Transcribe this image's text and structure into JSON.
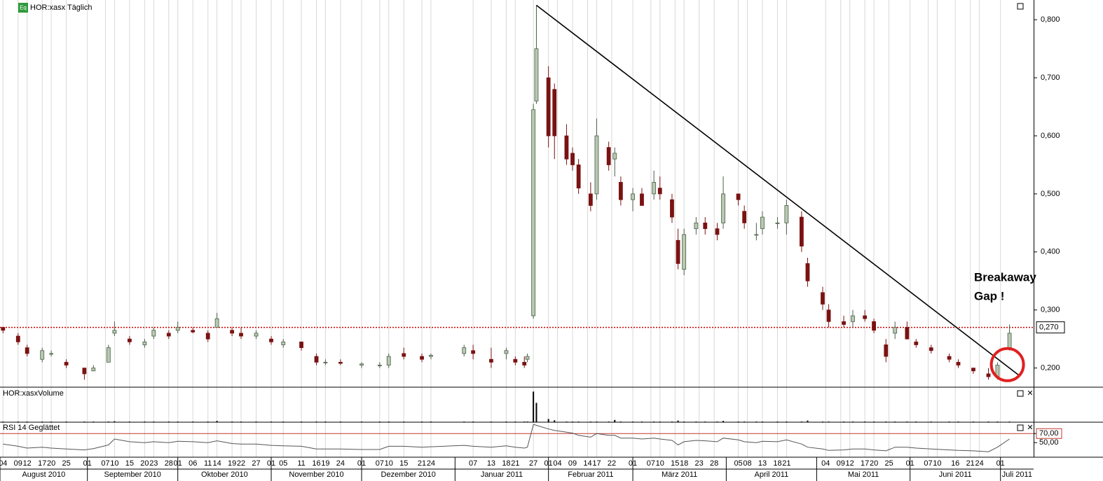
{
  "header": {
    "icon": "Eq",
    "title": "HOR:xasx Täglich"
  },
  "chart_data": {
    "type": "candlestick",
    "x": [
      "2010-08-04",
      "2010-08-09",
      "2010-08-12",
      "2010-08-17",
      "2010-08-20",
      "2010-08-25",
      "2010-08-31",
      "2010-09-03",
      "2010-09-08",
      "2010-09-10",
      "2010-09-15",
      "2010-09-20",
      "2010-09-23",
      "2010-09-28",
      "2010-10-01",
      "2010-10-06",
      "2010-10-11",
      "2010-10-14",
      "2010-10-19",
      "2010-10-22",
      "2010-10-27",
      "2010-11-01",
      "2010-11-05",
      "2010-11-11",
      "2010-11-16",
      "2010-11-19",
      "2010-11-24",
      "2010-12-01",
      "2010-12-07",
      "2010-12-10",
      "2010-12-15",
      "2010-12-21",
      "2010-12-24",
      "2011-01-04",
      "2011-01-07",
      "2011-01-13",
      "2011-01-18",
      "2011-01-21",
      "2011-01-24",
      "2011-01-25",
      "2011-01-27",
      "2011-01-28",
      "2011-02-01",
      "2011-02-03",
      "2011-02-07",
      "2011-02-09",
      "2011-02-11",
      "2011-02-15",
      "2011-02-17",
      "2011-02-21",
      "2011-02-23",
      "2011-02-25",
      "2011-03-01",
      "2011-03-04",
      "2011-03-08",
      "2011-03-10",
      "2011-03-14",
      "2011-03-16",
      "2011-03-18",
      "2011-03-22",
      "2011-03-25",
      "2011-03-29",
      "2011-03-31",
      "2011-04-05",
      "2011-04-07",
      "2011-04-11",
      "2011-04-13",
      "2011-04-18",
      "2011-04-21",
      "2011-04-26",
      "2011-04-28",
      "2011-05-03",
      "2011-05-05",
      "2011-05-10",
      "2011-05-13",
      "2011-05-17",
      "2011-05-20",
      "2011-05-24",
      "2011-05-27",
      "2011-05-31",
      "2011-06-03",
      "2011-06-08",
      "2011-06-14",
      "2011-06-17",
      "2011-06-22",
      "2011-06-27",
      "2011-06-30",
      "2011-07-04"
    ],
    "open": [
      0.27,
      0.255,
      0.235,
      0.215,
      0.225,
      0.21,
      0.2,
      0.195,
      0.21,
      0.26,
      0.25,
      0.24,
      0.255,
      0.26,
      0.265,
      0.265,
      0.26,
      0.27,
      0.265,
      0.26,
      0.255,
      0.25,
      0.24,
      0.245,
      0.22,
      0.21,
      0.21,
      0.205,
      0.205,
      0.205,
      0.225,
      0.22,
      0.22,
      0.225,
      0.23,
      0.215,
      0.225,
      0.215,
      0.21,
      0.215,
      0.29,
      0.66,
      0.7,
      0.68,
      0.6,
      0.57,
      0.55,
      0.5,
      0.5,
      0.58,
      0.56,
      0.52,
      0.49,
      0.5,
      0.5,
      0.51,
      0.49,
      0.42,
      0.37,
      0.44,
      0.45,
      0.44,
      0.45,
      0.5,
      0.47,
      0.43,
      0.44,
      0.45,
      0.45,
      0.46,
      0.38,
      0.33,
      0.3,
      0.28,
      0.28,
      0.29,
      0.28,
      0.24,
      0.26,
      0.27,
      0.245,
      0.235,
      0.22,
      0.21,
      0.2,
      0.19,
      0.185,
      0.235
    ],
    "high": [
      0.27,
      0.26,
      0.24,
      0.235,
      0.23,
      0.215,
      0.2,
      0.205,
      0.24,
      0.28,
      0.255,
      0.25,
      0.27,
      0.265,
      0.28,
      0.27,
      0.265,
      0.295,
      0.27,
      0.27,
      0.265,
      0.255,
      0.25,
      0.245,
      0.225,
      0.215,
      0.215,
      0.21,
      0.21,
      0.225,
      0.235,
      0.225,
      0.225,
      0.24,
      0.24,
      0.235,
      0.235,
      0.22,
      0.22,
      0.225,
      0.655,
      0.825,
      0.72,
      0.69,
      0.62,
      0.58,
      0.56,
      0.52,
      0.63,
      0.59,
      0.58,
      0.53,
      0.51,
      0.51,
      0.54,
      0.53,
      0.5,
      0.44,
      0.44,
      0.46,
      0.46,
      0.45,
      0.53,
      0.5,
      0.48,
      0.45,
      0.47,
      0.46,
      0.49,
      0.47,
      0.39,
      0.34,
      0.31,
      0.29,
      0.3,
      0.3,
      0.285,
      0.25,
      0.28,
      0.28,
      0.25,
      0.24,
      0.225,
      0.215,
      0.2,
      0.2,
      0.21,
      0.275
    ],
    "low": [
      0.26,
      0.24,
      0.22,
      0.21,
      0.22,
      0.2,
      0.18,
      0.195,
      0.21,
      0.255,
      0.24,
      0.235,
      0.25,
      0.25,
      0.26,
      0.26,
      0.245,
      0.27,
      0.255,
      0.25,
      0.25,
      0.24,
      0.235,
      0.23,
      0.205,
      0.205,
      0.205,
      0.2,
      0.2,
      0.2,
      0.215,
      0.21,
      0.215,
      0.22,
      0.215,
      0.2,
      0.215,
      0.205,
      0.2,
      0.21,
      0.285,
      0.655,
      0.58,
      0.56,
      0.55,
      0.54,
      0.5,
      0.47,
      0.49,
      0.54,
      0.53,
      0.48,
      0.47,
      0.48,
      0.49,
      0.49,
      0.45,
      0.37,
      0.36,
      0.43,
      0.43,
      0.42,
      0.44,
      0.48,
      0.44,
      0.42,
      0.43,
      0.44,
      0.43,
      0.4,
      0.34,
      0.3,
      0.27,
      0.27,
      0.27,
      0.28,
      0.26,
      0.21,
      0.25,
      0.25,
      0.235,
      0.225,
      0.21,
      0.2,
      0.19,
      0.18,
      0.18,
      0.23
    ],
    "close": [
      0.265,
      0.245,
      0.225,
      0.23,
      0.225,
      0.205,
      0.19,
      0.2,
      0.235,
      0.265,
      0.245,
      0.245,
      0.265,
      0.255,
      0.27,
      0.262,
      0.25,
      0.285,
      0.26,
      0.255,
      0.26,
      0.245,
      0.245,
      0.235,
      0.21,
      0.21,
      0.208,
      0.207,
      0.205,
      0.22,
      0.22,
      0.215,
      0.222,
      0.235,
      0.225,
      0.21,
      0.23,
      0.21,
      0.205,
      0.22,
      0.645,
      0.75,
      0.6,
      0.6,
      0.56,
      0.55,
      0.51,
      0.48,
      0.6,
      0.55,
      0.57,
      0.49,
      0.5,
      0.48,
      0.52,
      0.5,
      0.46,
      0.38,
      0.43,
      0.45,
      0.44,
      0.43,
      0.5,
      0.49,
      0.45,
      0.43,
      0.46,
      0.45,
      0.48,
      0.41,
      0.35,
      0.31,
      0.28,
      0.275,
      0.29,
      0.285,
      0.265,
      0.22,
      0.27,
      0.25,
      0.24,
      0.23,
      0.215,
      0.205,
      0.195,
      0.185,
      0.205,
      0.26
    ],
    "up_color": "#b7c9b0",
    "down_color": "#7a1212",
    "xlim": [
      "2010-08-03",
      "2011-07-12"
    ],
    "ylim": [
      0.167,
      0.834
    ],
    "yticks": [
      {
        "value": 0.2,
        "label": "0,200"
      },
      {
        "value": 0.3,
        "label": "0,300"
      },
      {
        "value": 0.4,
        "label": "0,400"
      },
      {
        "value": 0.5,
        "label": "0,500"
      },
      {
        "value": 0.6,
        "label": "0,600"
      },
      {
        "value": 0.7,
        "label": "0,700"
      },
      {
        "value": 0.8,
        "label": "0,800"
      }
    ],
    "xticks": [
      {
        "value": "2010-08-04",
        "label": "04"
      },
      {
        "value": "2010-08-09",
        "label": "09"
      },
      {
        "value": "2010-08-12",
        "label": "12"
      },
      {
        "value": "2010-08-17",
        "label": "17"
      },
      {
        "value": "2010-08-20",
        "label": "20"
      },
      {
        "value": "2010-08-25",
        "label": "25"
      },
      {
        "value": "2010-09-01",
        "label": "01"
      },
      {
        "value": "2010-09-07",
        "label": "07"
      },
      {
        "value": "2010-09-10",
        "label": "10"
      },
      {
        "value": "2010-09-15",
        "label": "15"
      },
      {
        "value": "2010-09-20",
        "label": "20"
      },
      {
        "value": "2010-09-23",
        "label": "23"
      },
      {
        "value": "2010-09-28",
        "label": "28"
      },
      {
        "value": "2010-10-01",
        "label": "01"
      },
      {
        "value": "2010-10-06",
        "label": "06"
      },
      {
        "value": "2010-10-11",
        "label": "11"
      },
      {
        "value": "2010-10-14",
        "label": "14"
      },
      {
        "value": "2010-10-19",
        "label": "19"
      },
      {
        "value": "2010-10-22",
        "label": "22"
      },
      {
        "value": "2010-10-27",
        "label": "27"
      },
      {
        "value": "2010-11-01",
        "label": "01"
      },
      {
        "value": "2010-11-05",
        "label": "05"
      },
      {
        "value": "2010-11-11",
        "label": "11"
      },
      {
        "value": "2010-11-16",
        "label": "16"
      },
      {
        "value": "2010-11-19",
        "label": "19"
      },
      {
        "value": "2010-11-24",
        "label": "24"
      },
      {
        "value": "2010-12-01",
        "label": "01"
      },
      {
        "value": "2010-12-07",
        "label": "07"
      },
      {
        "value": "2010-12-10",
        "label": "10"
      },
      {
        "value": "2010-12-15",
        "label": "15"
      },
      {
        "value": "2010-12-21",
        "label": "21"
      },
      {
        "value": "2010-12-24",
        "label": "24"
      },
      {
        "value": "2011-01-07",
        "label": "07"
      },
      {
        "value": "2011-01-13",
        "label": "13"
      },
      {
        "value": "2011-01-18",
        "label": "18"
      },
      {
        "value": "2011-01-21",
        "label": "21"
      },
      {
        "value": "2011-01-27",
        "label": "27"
      },
      {
        "value": "2011-02-01",
        "label": "01"
      },
      {
        "value": "2011-02-04",
        "label": "04"
      },
      {
        "value": "2011-02-09",
        "label": "09"
      },
      {
        "value": "2011-02-14",
        "label": "14"
      },
      {
        "value": "2011-02-17",
        "label": "17"
      },
      {
        "value": "2011-02-22",
        "label": "22"
      },
      {
        "value": "2011-03-01",
        "label": "01"
      },
      {
        "value": "2011-03-07",
        "label": "07"
      },
      {
        "value": "2011-03-10",
        "label": "10"
      },
      {
        "value": "2011-03-15",
        "label": "15"
      },
      {
        "value": "2011-03-18",
        "label": "18"
      },
      {
        "value": "2011-03-23",
        "label": "23"
      },
      {
        "value": "2011-03-28",
        "label": "28"
      },
      {
        "value": "2011-04-05",
        "label": "05"
      },
      {
        "value": "2011-04-08",
        "label": "08"
      },
      {
        "value": "2011-04-13",
        "label": "13"
      },
      {
        "value": "2011-04-18",
        "label": "18"
      },
      {
        "value": "2011-04-21",
        "label": "21"
      },
      {
        "value": "2011-05-04",
        "label": "04"
      },
      {
        "value": "2011-05-09",
        "label": "09"
      },
      {
        "value": "2011-05-12",
        "label": "12"
      },
      {
        "value": "2011-05-17",
        "label": "17"
      },
      {
        "value": "2011-05-20",
        "label": "20"
      },
      {
        "value": "2011-05-25",
        "label": "25"
      },
      {
        "value": "2011-06-01",
        "label": "01"
      },
      {
        "value": "2011-06-07",
        "label": "07"
      },
      {
        "value": "2011-06-10",
        "label": "10"
      },
      {
        "value": "2011-06-16",
        "label": "16"
      },
      {
        "value": "2011-06-21",
        "label": "21"
      },
      {
        "value": "2011-06-24",
        "label": "24"
      },
      {
        "value": "2011-07-01",
        "label": "01"
      }
    ],
    "month_ticks": [
      {
        "value": "2010-08-01",
        "label": "August 2010"
      },
      {
        "value": "2010-09-01",
        "label": "September 2010"
      },
      {
        "value": "2010-10-01",
        "label": "Oktober 2010"
      },
      {
        "value": "2010-11-01",
        "label": "November 2010"
      },
      {
        "value": "2010-12-01",
        "label": "Dezember 2010"
      },
      {
        "value": "2011-01-01",
        "label": "Januar 2011"
      },
      {
        "value": "2011-02-01",
        "label": "Februar 2011"
      },
      {
        "value": "2011-03-01",
        "label": "März 2011"
      },
      {
        "value": "2011-04-01",
        "label": "April 2011"
      },
      {
        "value": "2011-05-01",
        "label": "Mai 2011"
      },
      {
        "value": "2011-06-01",
        "label": "Juni 2011"
      },
      {
        "value": "2011-07-01",
        "label": "Juli 2011"
      }
    ],
    "hline": {
      "value": 0.27,
      "label": "0,270"
    },
    "hline_color": "#cc0000",
    "trendline": {
      "x": [
        "2011-01-28",
        "2011-07-07"
      ],
      "y": [
        0.825,
        0.188
      ]
    },
    "annotation": [
      "Breakaway",
      "Gap !"
    ],
    "annotation_color": "#e02020",
    "volume": {
      "title": "HOR:xasxVolume",
      "ylim": [
        0,
        100
      ],
      "color": "#000000",
      "values": [
        2,
        2,
        2,
        2,
        2,
        2,
        2,
        2,
        2,
        3,
        2,
        2,
        2,
        2,
        2,
        2,
        2,
        4,
        2,
        2,
        2,
        2,
        2,
        2,
        2,
        2,
        2,
        2,
        2,
        2,
        2,
        2,
        2,
        2,
        2,
        2,
        2,
        2,
        2,
        2,
        95,
        60,
        10,
        6,
        2,
        2,
        2,
        2,
        2,
        2,
        7,
        2,
        2,
        2,
        2,
        2,
        2,
        5,
        2,
        2,
        2,
        2,
        4,
        2,
        2,
        2,
        2,
        2,
        2,
        2,
        5,
        2,
        2,
        2,
        2,
        2,
        2,
        2,
        2,
        2,
        2,
        2,
        2,
        2,
        2,
        2,
        2,
        2
      ]
    },
    "rsi": {
      "title": "RSI 14 Geglättet",
      "ylim": [
        18,
        95
      ],
      "color": "#555555",
      "level_color": "#c0392b",
      "yticks": [
        {
          "value": 70,
          "label": "70,00"
        },
        {
          "value": 50,
          "label": "50,00"
        }
      ],
      "values": [
        47,
        42,
        38,
        40,
        38,
        36,
        34,
        37,
        45,
        58,
        52,
        50,
        52,
        50,
        53,
        52,
        50,
        54,
        48,
        47,
        47,
        44,
        43,
        42,
        36,
        36,
        36,
        35,
        35,
        42,
        42,
        40,
        41,
        44,
        42,
        40,
        43,
        40,
        38,
        40,
        90,
        88,
        80,
        77,
        73,
        71,
        66,
        62,
        70,
        66,
        66,
        60,
        60,
        58,
        60,
        58,
        55,
        45,
        52,
        55,
        54,
        52,
        60,
        56,
        52,
        50,
        53,
        52,
        56,
        47,
        40,
        36,
        33,
        34,
        36,
        36,
        34,
        32,
        40,
        40,
        38,
        36,
        34,
        33,
        32,
        30,
        40,
        58
      ]
    }
  }
}
